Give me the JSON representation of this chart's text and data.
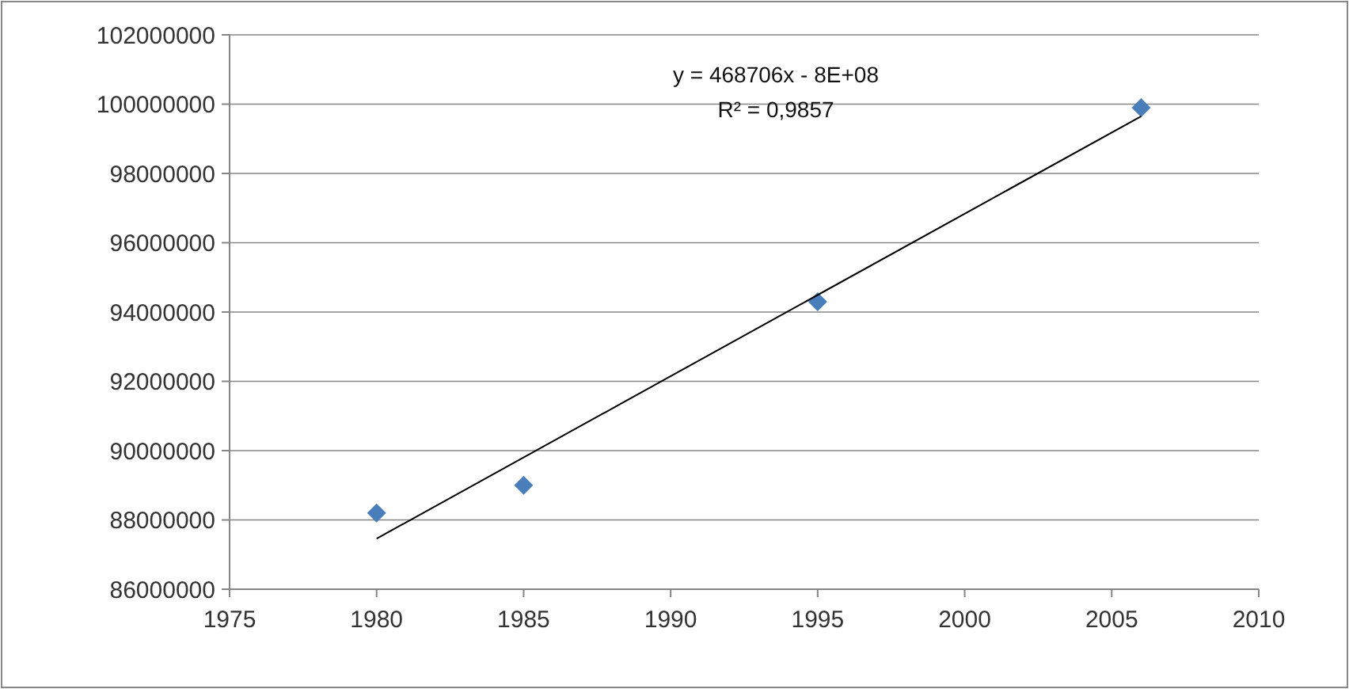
{
  "chart_data": {
    "type": "scatter",
    "x": [
      1980,
      1985,
      1995,
      2006
    ],
    "series": [
      {
        "color": "#4a7ebb",
        "values": [
          88200000,
          89000000,
          94300000,
          99900000
        ],
        "marker": "diamond"
      },
      {
        "type": "line",
        "color": "#000000",
        "x": [
          1980,
          2006
        ],
        "values": [
          87460000,
          99650000
        ],
        "marker": "none"
      }
    ],
    "xlim": [
      1975,
      2010
    ],
    "xticks": [
      1975,
      1980,
      1985,
      1990,
      1995,
      2000,
      2005,
      2010
    ],
    "ylim": [
      86000000,
      102000000
    ],
    "yticks": [
      86000000,
      88000000,
      90000000,
      92000000,
      94000000,
      96000000,
      98000000,
      100000000,
      102000000
    ],
    "grid": "y",
    "annotations": [
      "y = 468706x - 8E+08",
      "R² = 0,9857"
    ]
  }
}
